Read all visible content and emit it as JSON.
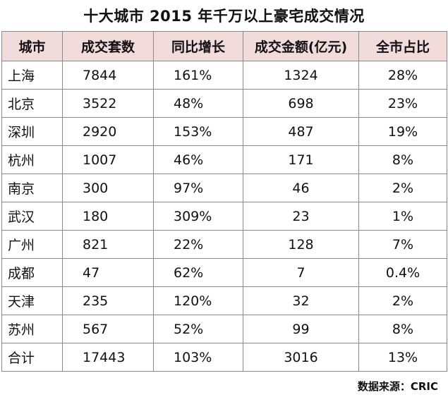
{
  "title": "十大城市 2015 年千万以上豪宅成交情况",
  "headers": [
    "城市",
    "成交套数",
    "同比增长",
    "成交金额(亿元)",
    "全市占比"
  ],
  "rows": [
    {
      "city": "上海",
      "units": "7844",
      "growth": "161%",
      "amount": "1324",
      "share": "28%"
    },
    {
      "city": "北京",
      "units": "3522",
      "growth": "48%",
      "amount": "698",
      "share": "23%"
    },
    {
      "city": "深圳",
      "units": "2920",
      "growth": "153%",
      "amount": "487",
      "share": "19%"
    },
    {
      "city": "杭州",
      "units": "1007",
      "growth": "46%",
      "amount": "171",
      "share": "8%"
    },
    {
      "city": "南京",
      "units": "300",
      "growth": "97%",
      "amount": "46",
      "share": "2%"
    },
    {
      "city": "武汉",
      "units": "180",
      "growth": "309%",
      "amount": "23",
      "share": "1%"
    },
    {
      "city": "广州",
      "units": "821",
      "growth": "22%",
      "amount": "128",
      "share": "7%"
    },
    {
      "city": "成都",
      "units": "47",
      "growth": "62%",
      "amount": "7",
      "share": "0.4%"
    },
    {
      "city": "天津",
      "units": "235",
      "growth": "120%",
      "amount": "32",
      "share": "2%"
    },
    {
      "city": "苏州",
      "units": "567",
      "growth": "52%",
      "amount": "99",
      "share": "8%"
    },
    {
      "city": "合计",
      "units": "17443",
      "growth": "103%",
      "amount": "3016",
      "share": "13%"
    }
  ],
  "source": "数据来源：CRIC",
  "colors": {
    "header_bg": "#f2dcdb",
    "border": "#8a8a8a"
  }
}
